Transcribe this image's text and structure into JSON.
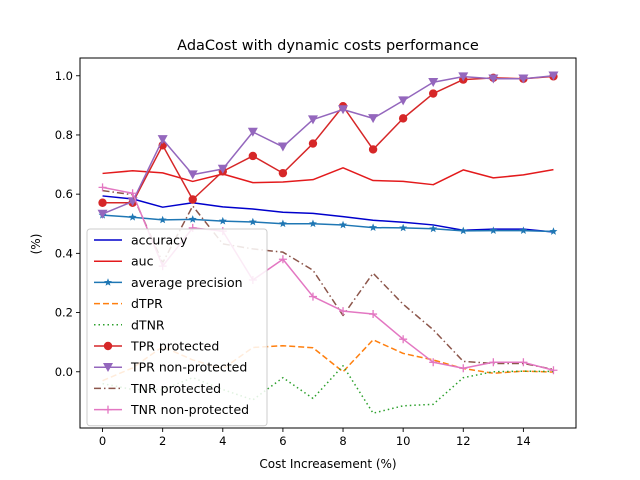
{
  "chart_data": {
    "type": "line",
    "title": "AdaCost with dynamic costs performance",
    "xlabel": "Cost Increasement (%)",
    "ylabel": "(%)",
    "xlim": [
      -0.75,
      15.75
    ],
    "ylim": [
      -0.19,
      1.06
    ],
    "xticks": [
      0,
      2,
      4,
      6,
      8,
      10,
      12,
      14
    ],
    "yticks": [
      0.0,
      0.2,
      0.4,
      0.6,
      0.8,
      1.0
    ],
    "xtick_labels": [
      "0",
      "2",
      "4",
      "6",
      "8",
      "10",
      "12",
      "14"
    ],
    "ytick_labels": [
      "0.0",
      "0.2",
      "0.4",
      "0.6",
      "0.8",
      "1.0"
    ],
    "grid": false,
    "legend_position": "lower-left",
    "x": [
      0,
      1,
      2,
      3,
      4,
      5,
      6,
      7,
      8,
      9,
      10,
      11,
      12,
      13,
      14,
      15
    ],
    "series": [
      {
        "name": "accuracy",
        "color": "#0000cc",
        "dash": "solid",
        "marker": "none",
        "values": [
          0.594,
          0.584,
          0.556,
          0.571,
          0.557,
          0.55,
          0.539,
          0.535,
          0.524,
          0.512,
          0.505,
          0.496,
          0.478,
          0.482,
          0.482,
          0.472
        ]
      },
      {
        "name": "auc",
        "color": "#e31a1c",
        "dash": "solid",
        "marker": "none",
        "values": [
          0.67,
          0.679,
          0.672,
          0.643,
          0.668,
          0.639,
          0.641,
          0.649,
          0.689,
          0.646,
          0.643,
          0.632,
          0.682,
          0.655,
          0.665,
          0.683
        ]
      },
      {
        "name": "average precision",
        "color": "#1f77b4",
        "dash": "solid",
        "marker": "star",
        "values": [
          0.529,
          0.522,
          0.513,
          0.515,
          0.509,
          0.506,
          0.5,
          0.5,
          0.496,
          0.487,
          0.486,
          0.483,
          0.476,
          0.477,
          0.477,
          0.474
        ]
      },
      {
        "name": "dTPR",
        "color": "#ff7f0e",
        "dash": "dashed",
        "marker": "none",
        "values": [
          -0.03,
          0.013,
          0.085,
          0.04,
          0.01,
          0.082,
          0.088,
          0.081,
          0.0,
          0.108,
          0.062,
          0.04,
          0.011,
          -0.005,
          0.002,
          -0.001
        ]
      },
      {
        "name": "dTNR",
        "color": "#2ca02c",
        "dash": "dotted",
        "marker": "none",
        "values": [
          -0.04,
          -0.06,
          -0.06,
          -0.02,
          -0.06,
          -0.095,
          -0.02,
          -0.09,
          0.02,
          -0.14,
          -0.115,
          -0.11,
          -0.02,
          0.0,
          0.002,
          0.001
        ]
      },
      {
        "name": "TPR protected",
        "color": "#d62728",
        "dash": "solid",
        "marker": "circle",
        "values": [
          0.571,
          0.571,
          0.765,
          0.582,
          0.677,
          0.729,
          0.671,
          0.771,
          0.897,
          0.751,
          0.856,
          0.94,
          0.987,
          0.993,
          0.99,
          0.998
        ]
      },
      {
        "name": "TPR non-protected",
        "color": "#9467bd",
        "dash": "solid",
        "marker": "triangle-down",
        "values": [
          0.533,
          0.575,
          0.785,
          0.666,
          0.685,
          0.81,
          0.76,
          0.852,
          0.886,
          0.856,
          0.916,
          0.978,
          0.997,
          0.99,
          0.99,
          1.0
        ]
      },
      {
        "name": "TNR protected",
        "color": "#8c564b",
        "dash": "dashdot",
        "marker": "none",
        "values": [
          0.612,
          0.598,
          0.368,
          0.56,
          0.432,
          0.415,
          0.404,
          0.343,
          0.19,
          0.333,
          0.228,
          0.142,
          0.035,
          0.028,
          0.028,
          0.008
        ]
      },
      {
        "name": "TNR non-protected",
        "color": "#e377c2",
        "dash": "solid",
        "marker": "plus",
        "values": [
          0.623,
          0.603,
          0.357,
          0.486,
          0.475,
          0.31,
          0.38,
          0.254,
          0.205,
          0.195,
          0.11,
          0.032,
          0.012,
          0.032,
          0.032,
          0.005
        ]
      }
    ]
  }
}
